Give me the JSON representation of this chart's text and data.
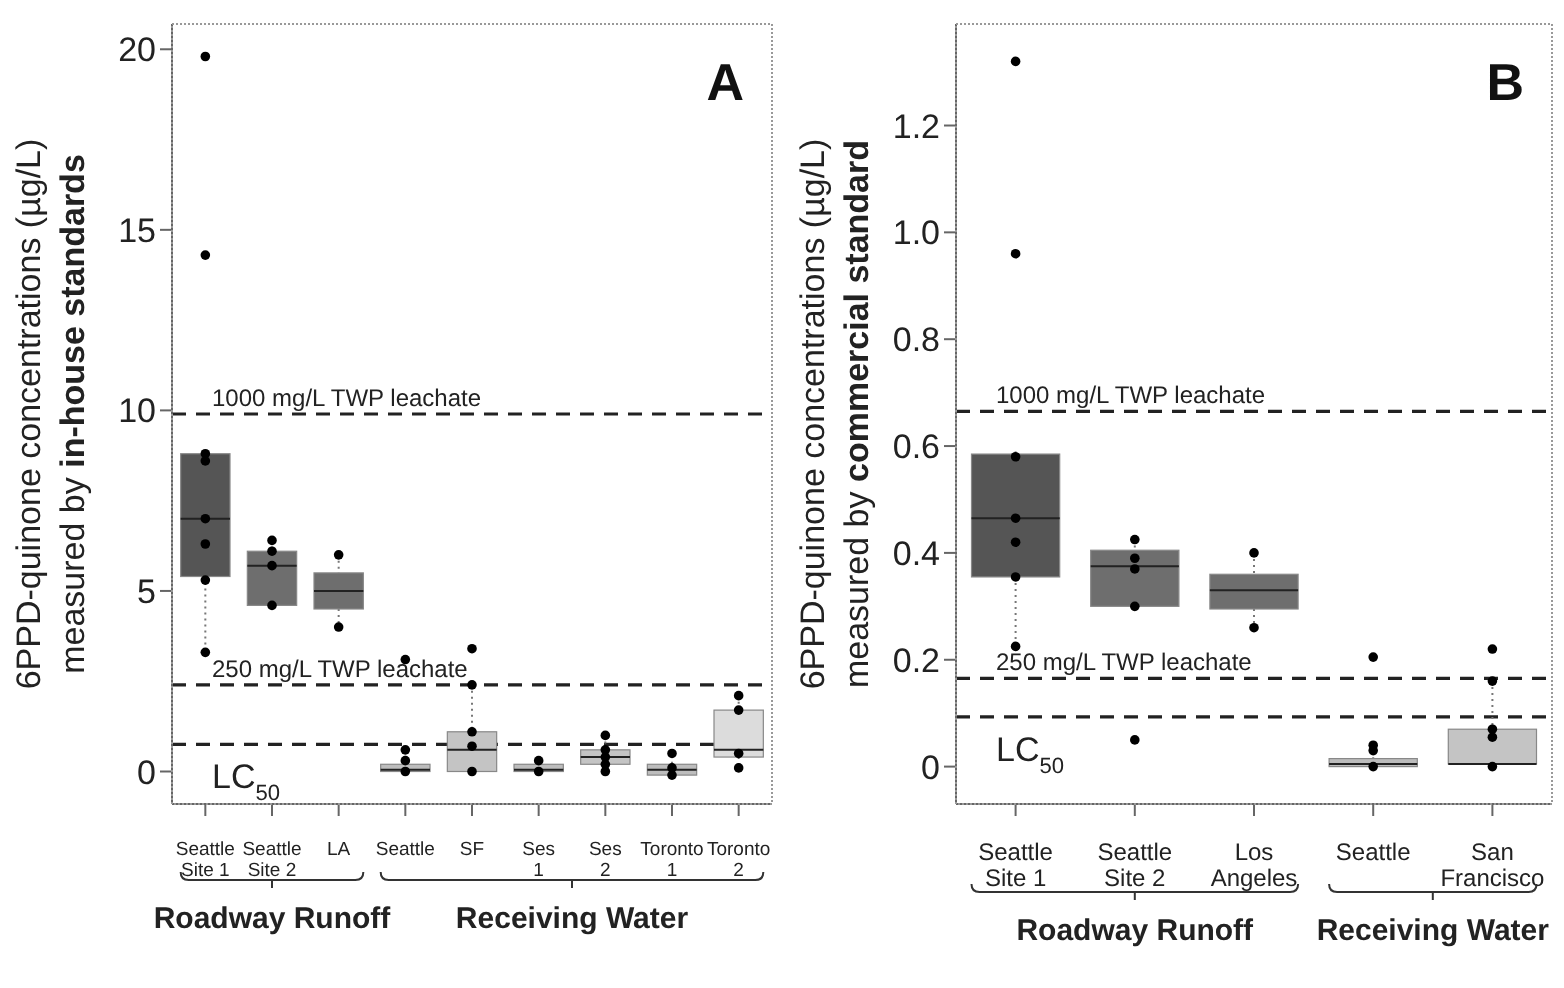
{
  "chart_data": [
    {
      "type": "box",
      "title": "A",
      "ylabel": "6PPD-quinone concentrations (µg/L) measured by in-house standards",
      "categories": [
        "Seattle Site 1",
        "Seattle Site 2",
        "LA",
        "Seattle",
        "SF",
        "Ses 1",
        "Ses 2",
        "Toronto 1",
        "Toronto 2"
      ],
      "colors": [
        "#555555",
        "#6e6e6e",
        "#6e6e6e",
        "#bdbdbd",
        "#c4c4c4",
        "#bdbdbd",
        "#c4c4c4",
        "#bdbdbd",
        "#dcdcdc"
      ],
      "boxes": [
        {
          "low": 3.3,
          "q1": 5.4,
          "median": 7.0,
          "q3": 8.8,
          "high": 8.8,
          "outliers": [
            14.3,
            19.8
          ]
        },
        {
          "low": 4.6,
          "q1": 4.6,
          "median": 5.7,
          "q3": 6.1,
          "high": 6.4
        },
        {
          "low": 4.0,
          "q1": 4.5,
          "median": 5.0,
          "q3": 5.5,
          "high": 6.0
        },
        {
          "low": 0,
          "q1": 0,
          "median": 0.05,
          "q3": 0.2,
          "high": 0.6,
          "outliers": [
            3.1
          ]
        },
        {
          "low": 0,
          "q1": 0,
          "median": 0.6,
          "q3": 1.1,
          "high": 2.4,
          "outliers": [
            3.4
          ]
        },
        {
          "low": 0,
          "q1": 0,
          "median": 0.05,
          "q3": 0.2,
          "high": 0.4
        },
        {
          "low": 0,
          "q1": 0.2,
          "median": 0.4,
          "q3": 0.6,
          "high": 1.0
        },
        {
          "low": -0.1,
          "q1": -0.1,
          "median": 0.05,
          "q3": 0.2,
          "high": 0.6
        },
        {
          "low": 0.1,
          "q1": 0.4,
          "median": 0.6,
          "q3": 1.7,
          "high": 2.1
        }
      ],
      "series": [
        {
          "type": "scatter",
          "color": "#000000",
          "x": [
            "Seattle Site 1",
            "Seattle Site 1",
            "Seattle Site 1",
            "Seattle Site 1",
            "Seattle Site 1",
            "Seattle Site 1",
            "Seattle Site 2",
            "Seattle Site 2",
            "Seattle Site 2",
            "Seattle Site 2",
            "LA",
            "LA",
            "Seattle",
            "Seattle",
            "Seattle",
            "Seattle",
            "SF",
            "SF",
            "SF",
            "SF",
            "Ses 1",
            "Ses 1",
            "Ses 1",
            "Ses 2",
            "Ses 2",
            "Ses 2",
            "Ses 2",
            "Ses 2",
            "Toronto 1",
            "Toronto 1",
            "Toronto 1",
            "Toronto 2",
            "Toronto 2",
            "Toronto 2",
            "Toronto 2",
            "Toronto 2"
          ],
          "values": [
            8.8,
            8.6,
            7.0,
            6.3,
            5.3,
            3.3,
            6.4,
            6.1,
            5.7,
            4.6,
            6.0,
            4.0,
            0.6,
            0.3,
            null,
            0,
            2.4,
            1.1,
            0.7,
            0,
            0.3,
            null,
            0,
            1.0,
            0.6,
            0.4,
            0.2,
            0,
            0.5,
            0.1,
            -0.1,
            2.1,
            1.7,
            null,
            0.5,
            0.1
          ]
        }
      ],
      "ylim": [
        -0.9,
        20.7
      ],
      "yticks": [
        0,
        5,
        10,
        15,
        20
      ],
      "marker": "circle",
      "ref_lines": [
        {
          "axis": "y",
          "value": 9.9,
          "label": "1000 mg/L TWP leachate",
          "color": "#222222",
          "line_style": "dashed"
        },
        {
          "axis": "y",
          "value": 2.4,
          "label": "250 mg/L TWP leachate",
          "color": "#222222",
          "line_style": "dashed"
        },
        {
          "axis": "y",
          "value": 0.75,
          "label": "LC$_{50}$",
          "color": "#222222",
          "line_style": "dashed"
        }
      ],
      "annotations": [
        "Roadway Runoff",
        "Receiving Water"
      ]
    },
    {
      "type": "box",
      "title": "B",
      "ylabel": "6PPD-quinone concentrations (µg/L) measured by commercial standard",
      "categories": [
        "Seattle Site 1",
        "Seattle Site 2",
        "Los Angeles",
        "Seattle",
        "San Francisco"
      ],
      "colors": [
        "#555555",
        "#6e6e6e",
        "#6e6e6e",
        "#bdbdbd",
        "#c4c4c4"
      ],
      "boxes": [
        {
          "low": 0.22,
          "q1": 0.355,
          "median": 0.465,
          "q3": 0.585,
          "high": 0.59,
          "outliers": [
            0.96,
            1.32
          ]
        },
        {
          "low": 0.3,
          "q1": 0.3,
          "median": 0.375,
          "q3": 0.405,
          "high": 0.425,
          "outliers": [
            0.05
          ]
        },
        {
          "low": 0.26,
          "q1": 0.295,
          "median": 0.33,
          "q3": 0.36,
          "high": 0.4
        },
        {
          "low": 0,
          "q1": 0,
          "median": 0.005,
          "q3": 0.015,
          "high": 0.04,
          "outliers": [
            0.205
          ]
        },
        {
          "low": 0,
          "q1": 0.005,
          "median": 0.005,
          "q3": 0.07,
          "high": 0.16,
          "outliers": [
            0.22
          ]
        }
      ],
      "series": [
        {
          "type": "scatter",
          "color": "#000000",
          "x": [
            "Seattle Site 1",
            "Seattle Site 1",
            "Seattle Site 1",
            "Seattle Site 1",
            "Seattle Site 1",
            "Seattle Site 2",
            "Seattle Site 2",
            "Seattle Site 2",
            "Seattle Site 2",
            "Los Angeles",
            "Los Angeles",
            "Seattle",
            "Seattle",
            "Seattle",
            "San Francisco",
            "San Francisco",
            "San Francisco",
            "San Francisco"
          ],
          "values": [
            0.58,
            0.465,
            0.42,
            0.355,
            0.225,
            0.425,
            0.39,
            0.37,
            0.3,
            0.4,
            0.26,
            0.04,
            0.03,
            0,
            0.16,
            0.07,
            0.055,
            0
          ]
        }
      ],
      "ylim": [
        -0.07,
        1.39
      ],
      "yticks": [
        0,
        0.2,
        0.4,
        0.6,
        0.8,
        {
          "value": 1,
          "label": "1.0"
        },
        1.2
      ],
      "marker": "circle",
      "ref_lines": [
        {
          "axis": "y",
          "value": 0.665,
          "label": "1000 mg/L TWP leachate",
          "color": "#222222",
          "line_style": "dashed"
        },
        {
          "axis": "y",
          "value": 0.165,
          "label": "250 mg/L TWP leachate",
          "color": "#222222",
          "line_style": "dashed"
        },
        {
          "axis": "y",
          "value": 0.093,
          "label": "LC$_{50}$",
          "color": "#222222",
          "line_style": "dashed"
        }
      ],
      "annotations": [
        "Roadway Runoff",
        "Receiving Water"
      ]
    }
  ]
}
